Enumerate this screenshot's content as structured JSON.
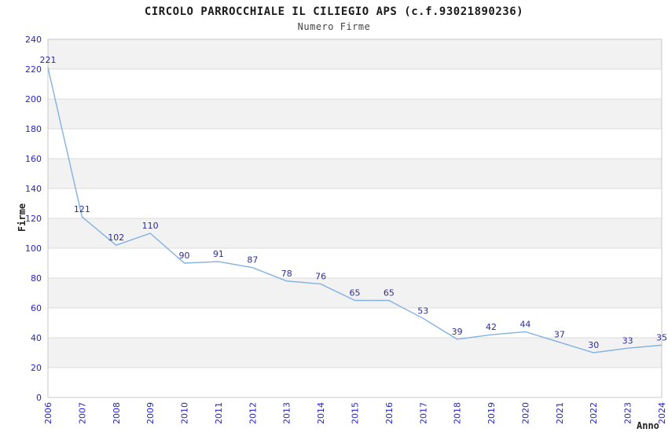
{
  "chart_data": {
    "type": "line",
    "title": "CIRCOLO PARROCCHIALE IL CILIEGIO APS (c.f.93021890236)",
    "subtitle": "Numero Firme",
    "xlabel": "Anno",
    "ylabel": "Firme",
    "x": [
      2006,
      2007,
      2008,
      2009,
      2010,
      2011,
      2012,
      2013,
      2014,
      2015,
      2016,
      2017,
      2018,
      2019,
      2020,
      2021,
      2022,
      2023,
      2024
    ],
    "series": [
      {
        "name": "Numero Firme",
        "values": [
          221,
          121,
          102,
          110,
          90,
          91,
          87,
          78,
          76,
          65,
          65,
          53,
          39,
          42,
          44,
          37,
          30,
          33,
          35
        ]
      }
    ],
    "ylim": [
      0,
      240
    ],
    "ytick_step": 20,
    "yticks": [
      0,
      20,
      40,
      60,
      80,
      100,
      120,
      140,
      160,
      180,
      200,
      220,
      240
    ],
    "grid": true,
    "legend": "none",
    "colors": {
      "line": "#82b1e2",
      "data_label": "#2d2d96",
      "tick_label": "#2424cf",
      "band_gray": "#f2f2f2",
      "band_white": "#ffffff",
      "gridline": "#dcdcdc",
      "plot_border": "#c8c8c8",
      "title": "#1a1a1a",
      "subtitle": "#444444",
      "axis_title": "#222222"
    }
  }
}
